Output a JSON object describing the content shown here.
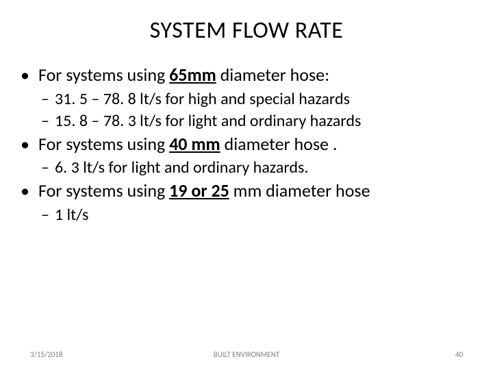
{
  "title": "SYSTEM FLOW RATE",
  "bullets": [
    {
      "prefix": "For systems using ",
      "emph": "65mm",
      "suffix": " diameter hose:",
      "sub": [
        "31. 5 – 78. 8 lt/s for high and special hazards",
        "15. 8 – 78. 3 lt/s for light and ordinary hazards"
      ]
    },
    {
      "prefix": "For systems using ",
      "emph": "40 mm",
      "suffix": " diameter hose .",
      "sub": [
        "6. 3 lt/s for light and ordinary hazards."
      ]
    },
    {
      "prefix": "For systems using ",
      "emph": "19 or 25",
      "suffix": " mm diameter hose",
      "sub": [
        "1 lt/s"
      ]
    }
  ],
  "footer": {
    "date": "3/15/2018",
    "center": "BUILT ENVIRONMENT",
    "page": "40"
  },
  "markers": {
    "level1": "•",
    "level2": "–"
  }
}
